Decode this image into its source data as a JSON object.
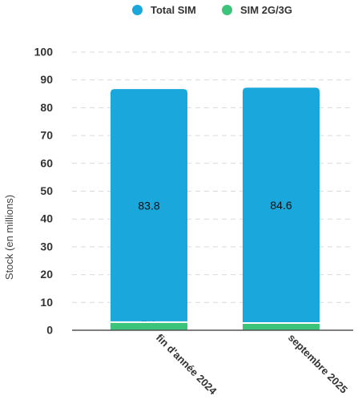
{
  "chart_data": {
    "type": "bar",
    "stacked": true,
    "categories": [
      "fin d'année 2024",
      "septembre 2025"
    ],
    "series": [
      {
        "name": "SIM 2G/3G",
        "values": [
          2.9,
          2.6
        ],
        "color": "#3cc47a"
      },
      {
        "name": "Total SIM",
        "values": [
          83.8,
          84.6
        ],
        "color": "#1aa7db"
      }
    ],
    "ylabel": "Stock (en millions)",
    "xlabel": "",
    "ylim": [
      0,
      100
    ],
    "yticks": [
      0,
      10,
      20,
      30,
      40,
      50,
      60,
      70,
      80,
      90,
      100
    ],
    "grid": true,
    "legend_position": "top",
    "legend_order": [
      "Total SIM",
      "SIM 2G/3G"
    ]
  }
}
